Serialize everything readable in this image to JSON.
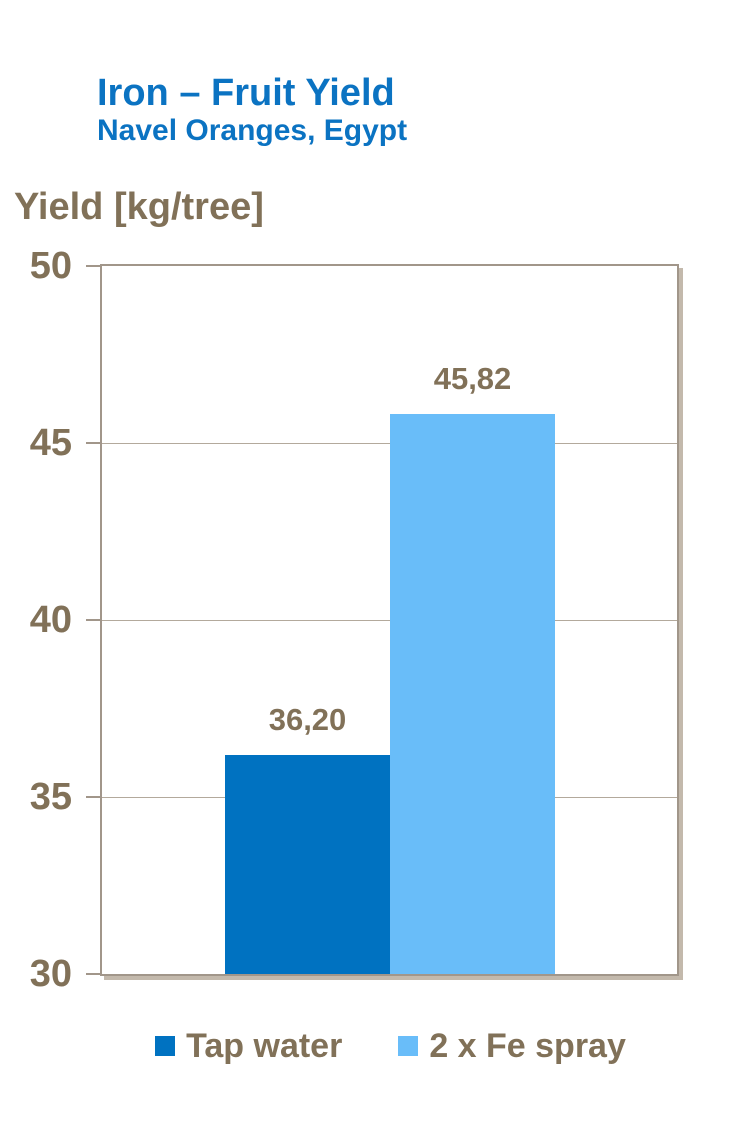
{
  "header": {
    "title": "Iron – Fruit Yield",
    "subtitle": "Navel Oranges, Egypt"
  },
  "chart": {
    "axis_title": "Yield [kg/tree]"
  },
  "chart_data": {
    "type": "bar",
    "title": "Iron – Fruit Yield",
    "subtitle": "Navel Oranges, Egypt",
    "ylabel": "Yield [kg/tree]",
    "ylim": [
      30,
      50
    ],
    "yticks": [
      30,
      35,
      40,
      45,
      50
    ],
    "grid": "horizontal",
    "legend_position": "bottom",
    "decimal_separator": ",",
    "series": [
      {
        "name": "Tap water",
        "value": 36.2,
        "label": "36,20",
        "color": "#0072c1"
      },
      {
        "name": "2 x Fe spray",
        "value": 45.82,
        "label": "45,82",
        "color": "#69bdf9"
      }
    ]
  },
  "colors": {
    "title_blue": "#0b73c2",
    "axis_text": "#817158",
    "border_dark": "#a1968a",
    "border_light": "#c3b9ac",
    "gridline": "#b3a99c",
    "background": "#ffffff"
  }
}
